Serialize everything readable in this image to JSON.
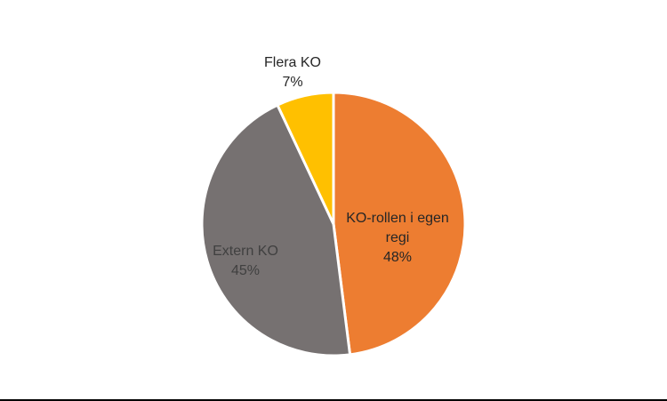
{
  "chart_data": {
    "type": "pie",
    "start": "top",
    "direction": "clockwise",
    "slices": [
      {
        "label": [
          "KO-rollen i egen",
          "regi"
        ],
        "percent_label": "48%",
        "value": 48,
        "color": "#ED7D31",
        "label_color": "#262626"
      },
      {
        "label": [
          "Extern KO"
        ],
        "percent_label": "45%",
        "value": 45,
        "color": "#767171",
        "label_color": "#404040"
      },
      {
        "label": [
          "Flera KO"
        ],
        "percent_label": "7%",
        "value": 7,
        "color": "#FFC000",
        "label_color": "#262626"
      }
    ]
  }
}
